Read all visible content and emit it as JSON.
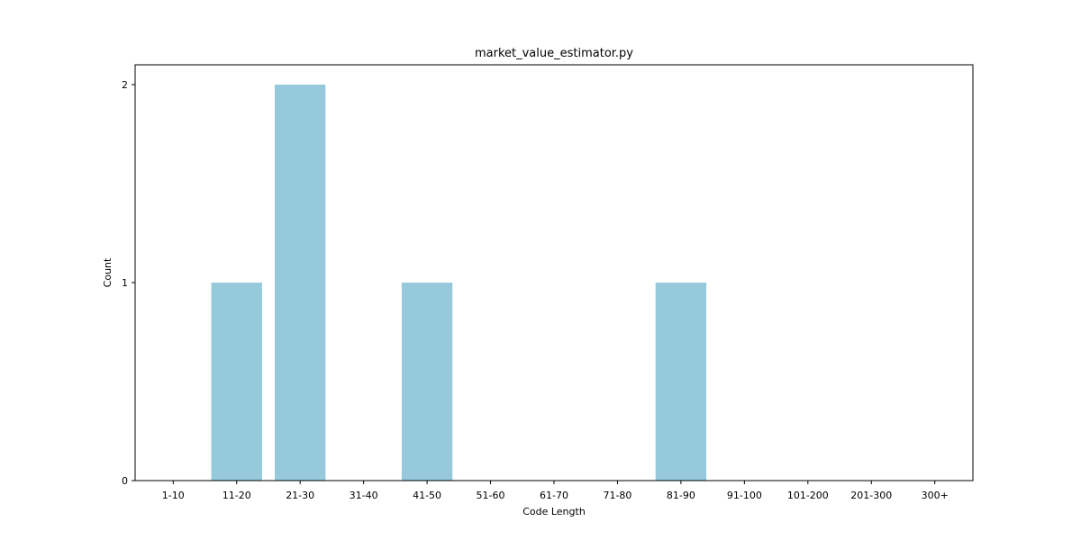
{
  "chart_data": {
    "type": "bar",
    "title": "market_value_estimator.py",
    "xlabel": "Code Length",
    "ylabel": "Count",
    "categories": [
      "1-10",
      "11-20",
      "21-30",
      "31-40",
      "41-50",
      "51-60",
      "61-70",
      "71-80",
      "81-90",
      "91-100",
      "101-200",
      "201-300",
      "300+"
    ],
    "values": [
      0,
      1,
      2,
      0,
      1,
      0,
      0,
      0,
      1,
      0,
      0,
      0,
      0
    ],
    "ylim": [
      0,
      2.1
    ],
    "yticks": [
      0,
      1,
      2
    ],
    "bar_color": "#96c9dc",
    "grid": false,
    "legend": "none"
  }
}
